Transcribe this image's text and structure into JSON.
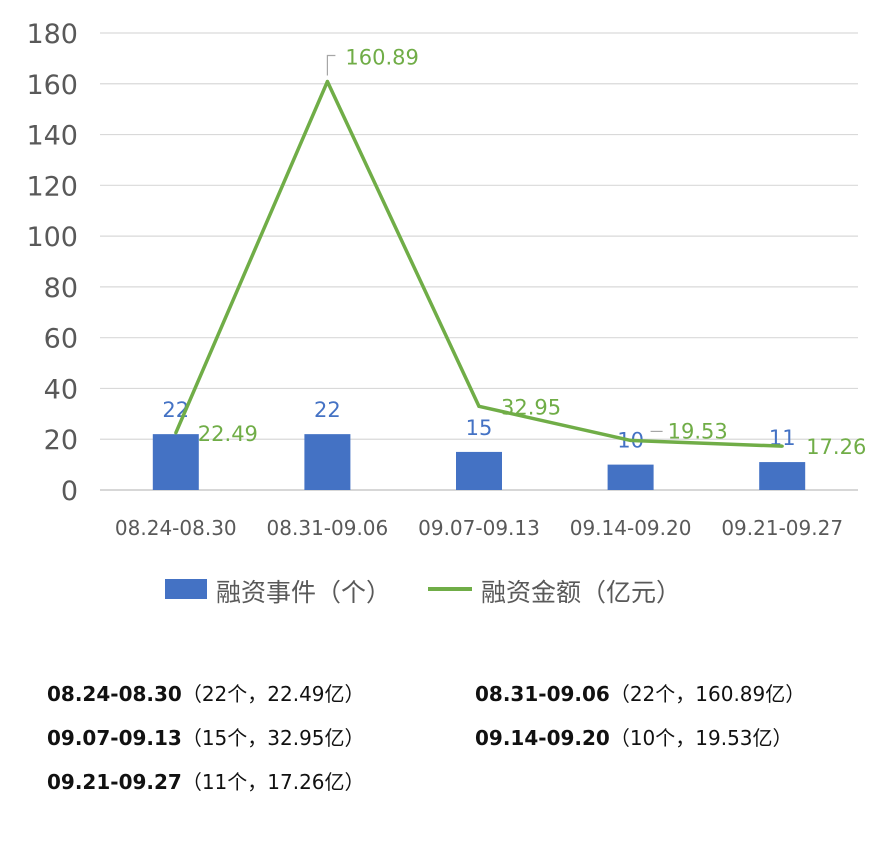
{
  "chart_data": {
    "type": "bar",
    "categories": [
      "08.24-08.30",
      "08.31-09.06",
      "09.07-09.13",
      "09.14-09.20",
      "09.21-09.27"
    ],
    "series": [
      {
        "name": "融资事件（个）",
        "type": "bar",
        "values": [
          22,
          22,
          15,
          10,
          11
        ],
        "color": "#4472c4"
      },
      {
        "name": "融资金额（亿元）",
        "type": "line",
        "values": [
          22.49,
          160.89,
          32.95,
          19.53,
          17.26
        ],
        "color": "#70ad47"
      }
    ],
    "ylim": [
      0,
      180
    ],
    "yticks": [
      0,
      20,
      40,
      60,
      80,
      100,
      120,
      140,
      160,
      180
    ],
    "grid": true,
    "legend_position": "bottom"
  },
  "summary": [
    {
      "period": "08.24-08.30",
      "detail": "（22个，22.49亿）"
    },
    {
      "period": "08.31-09.06",
      "detail": "（22个，160.89亿）"
    },
    {
      "period": "09.07-09.13",
      "detail": "（15个，32.95亿）"
    },
    {
      "period": "09.14-09.20",
      "detail": "（10个，19.53亿）"
    },
    {
      "period": "09.21-09.27",
      "detail": "（11个，17.26亿）"
    }
  ]
}
